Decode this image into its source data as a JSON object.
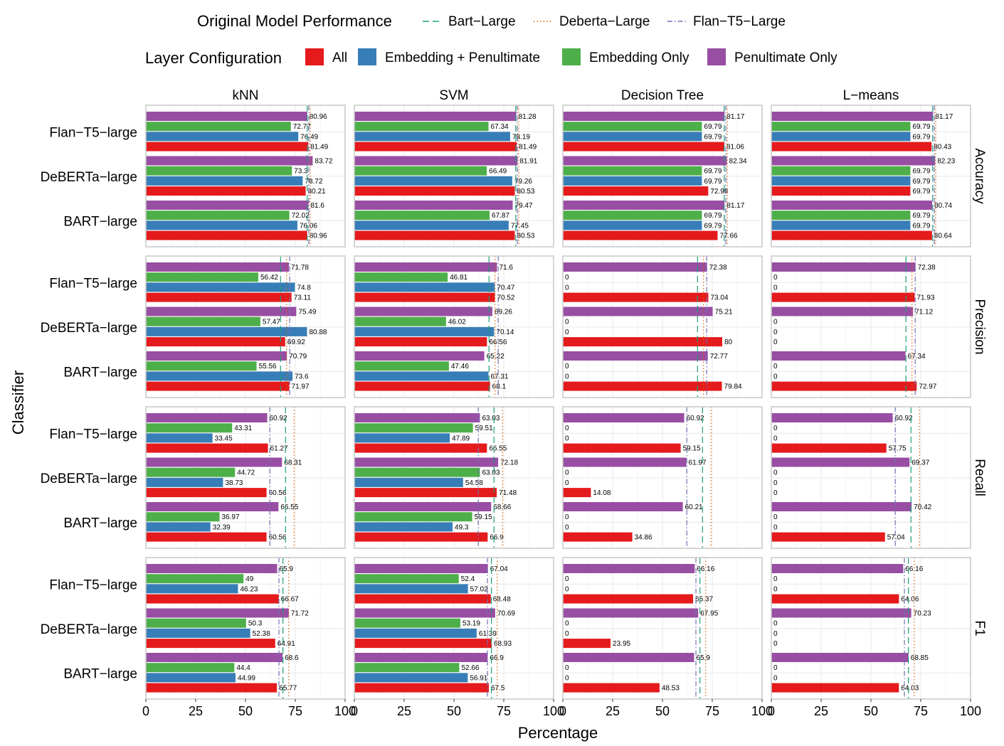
{
  "chart_data": {
    "type": "bar",
    "xlabel": "Percentage",
    "ylabel": "Classifier",
    "xlim": [
      0,
      100
    ],
    "xticks": [
      0,
      25,
      50,
      75,
      100
    ],
    "grid": true,
    "columns": [
      "kNN",
      "SVM",
      "Decision Tree",
      "L−means"
    ],
    "rows": [
      "Accuracy",
      "Precision",
      "Recall",
      "F1"
    ],
    "categories": [
      "Flan−T5−large",
      "DeBERTa−large",
      "BART−large"
    ],
    "legend": {
      "placement": "top",
      "ref_title": "Original Model Performance",
      "ref_items": [
        {
          "name": "Bart−Large",
          "color": "#1b9e77",
          "dash": "9,5"
        },
        {
          "name": "Deberta−Large",
          "color": "#d95f02",
          "dash": "1.5,3"
        },
        {
          "name": "Flan−T5−Large",
          "color": "#7570b3",
          "dash": "7,3,1.5,3"
        }
      ],
      "layer_title": "Layer Configuration",
      "layer_items": [
        {
          "name": "All",
          "color": "#e41a1c"
        },
        {
          "name": "Embedding + Penultimate",
          "color": "#377eb8"
        },
        {
          "name": "Embedding Only",
          "color": "#4daf4a"
        },
        {
          "name": "Penultimate Only",
          "color": "#984ea3"
        }
      ]
    },
    "bar_order_top_to_bottom": [
      "Penultimate Only",
      "Embedding Only",
      "Embedding + Penultimate",
      "All"
    ],
    "reference_lines": {
      "Accuracy": {
        "Bart−Large": 81.0,
        "Deberta−Large": 82.5,
        "Flan−T5−Large": 81.8
      },
      "Precision": {
        "Bart−Large": 67.6,
        "Deberta−Large": 70.6,
        "Flan−T5−Large": 72.2
      },
      "Recall": {
        "Bart−Large": 70.1,
        "Deberta−Large": 74.4,
        "Flan−T5−Large": 62.2
      },
      "F1": {
        "Bart−Large": 68.8,
        "Deberta−Large": 71.7,
        "Flan−T5−Large": 66.8
      }
    },
    "panels": [
      {
        "metric": "Accuracy",
        "classifier": "kNN",
        "values": {
          "Flan−T5−large": {
            "Penultimate Only": 80.96,
            "Embedding Only": 72.77,
            "Embedding + Penultimate": 76.49,
            "All": 81.49
          },
          "DeBERTa−large": {
            "Penultimate Only": 83.72,
            "Embedding Only": 73.3,
            "Embedding + Penultimate": 78.72,
            "All": 80.21
          },
          "BART−large": {
            "Penultimate Only": 81.6,
            "Embedding Only": 72.02,
            "Embedding + Penultimate": 76.06,
            "All": 80.96
          }
        }
      },
      {
        "metric": "Accuracy",
        "classifier": "SVM",
        "values": {
          "Flan−T5−large": {
            "Penultimate Only": 81.28,
            "Embedding Only": 67.34,
            "Embedding + Penultimate": 78.19,
            "All": 81.49
          },
          "DeBERTa−large": {
            "Penultimate Only": 81.91,
            "Embedding Only": 66.49,
            "Embedding + Penultimate": 79.26,
            "All": 80.53
          },
          "BART−large": {
            "Penultimate Only": 79.47,
            "Embedding Only": 67.87,
            "Embedding + Penultimate": 77.45,
            "All": 80.53
          }
        }
      },
      {
        "metric": "Accuracy",
        "classifier": "Decision Tree",
        "values": {
          "Flan−T5−large": {
            "Penultimate Only": 81.17,
            "Embedding Only": 69.79,
            "Embedding + Penultimate": 69.79,
            "All": 81.06
          },
          "DeBERTa−large": {
            "Penultimate Only": 82.34,
            "Embedding Only": 69.79,
            "Embedding + Penultimate": 69.79,
            "All": 72.98
          },
          "BART−large": {
            "Penultimate Only": 81.17,
            "Embedding Only": 69.79,
            "Embedding + Penultimate": 69.79,
            "All": 77.66
          }
        }
      },
      {
        "metric": "Accuracy",
        "classifier": "L−means",
        "values": {
          "Flan−T5−large": {
            "Penultimate Only": 81.17,
            "Embedding Only": 69.79,
            "Embedding + Penultimate": 69.79,
            "All": 80.43
          },
          "DeBERTa−large": {
            "Penultimate Only": 82.23,
            "Embedding Only": 69.79,
            "Embedding + Penultimate": 69.79,
            "All": 69.79
          },
          "BART−large": {
            "Penultimate Only": 80.74,
            "Embedding Only": 69.79,
            "Embedding + Penultimate": 69.79,
            "All": 80.64
          }
        }
      },
      {
        "metric": "Precision",
        "classifier": "kNN",
        "values": {
          "Flan−T5−large": {
            "Penultimate Only": 71.78,
            "Embedding Only": 56.42,
            "Embedding + Penultimate": 74.8,
            "All": 73.11
          },
          "DeBERTa−large": {
            "Penultimate Only": 75.49,
            "Embedding Only": 57.47,
            "Embedding + Penultimate": 80.88,
            "All": 69.92
          },
          "BART−large": {
            "Penultimate Only": 70.79,
            "Embedding Only": 55.56,
            "Embedding + Penultimate": 73.6,
            "All": 71.97
          }
        }
      },
      {
        "metric": "Precision",
        "classifier": "SVM",
        "values": {
          "Flan−T5−large": {
            "Penultimate Only": 71.6,
            "Embedding Only": 46.81,
            "Embedding + Penultimate": 70.47,
            "All": 70.52
          },
          "DeBERTa−large": {
            "Penultimate Only": 69.26,
            "Embedding Only": 46.02,
            "Embedding + Penultimate": 70.14,
            "All": 66.56
          },
          "BART−large": {
            "Penultimate Only": 65.22,
            "Embedding Only": 47.46,
            "Embedding + Penultimate": 67.31,
            "All": 68.1
          }
        }
      },
      {
        "metric": "Precision",
        "classifier": "Decision Tree",
        "values": {
          "Flan−T5−large": {
            "Penultimate Only": 72.38,
            "Embedding Only": 0,
            "Embedding + Penultimate": 0,
            "All": 73.04
          },
          "DeBERTa−large": {
            "Penultimate Only": 75.21,
            "Embedding Only": 0,
            "Embedding + Penultimate": 0,
            "All": 80
          },
          "BART−large": {
            "Penultimate Only": 72.77,
            "Embedding Only": 0,
            "Embedding + Penultimate": 0,
            "All": 79.84
          }
        }
      },
      {
        "metric": "Precision",
        "classifier": "L−means",
        "values": {
          "Flan−T5−large": {
            "Penultimate Only": 72.38,
            "Embedding Only": 0,
            "Embedding + Penultimate": 0,
            "All": 71.93
          },
          "DeBERTa−large": {
            "Penultimate Only": 71.12,
            "Embedding Only": 0,
            "Embedding + Penultimate": 0,
            "All": 0
          },
          "BART−large": {
            "Penultimate Only": 67.34,
            "Embedding Only": 0,
            "Embedding + Penultimate": 0,
            "All": 72.97
          }
        }
      },
      {
        "metric": "Recall",
        "classifier": "kNN",
        "values": {
          "Flan−T5−large": {
            "Penultimate Only": 60.92,
            "Embedding Only": 43.31,
            "Embedding + Penultimate": 33.45,
            "All": 61.27
          },
          "DeBERTa−large": {
            "Penultimate Only": 68.31,
            "Embedding Only": 44.72,
            "Embedding + Penultimate": 38.73,
            "All": 60.56
          },
          "BART−large": {
            "Penultimate Only": 66.55,
            "Embedding Only": 36.97,
            "Embedding + Penultimate": 32.39,
            "All": 60.56
          }
        }
      },
      {
        "metric": "Recall",
        "classifier": "SVM",
        "values": {
          "Flan−T5−large": {
            "Penultimate Only": 63.03,
            "Embedding Only": 59.51,
            "Embedding + Penultimate": 47.89,
            "All": 66.55
          },
          "DeBERTa−large": {
            "Penultimate Only": 72.18,
            "Embedding Only": 63.03,
            "Embedding + Penultimate": 54.58,
            "All": 71.48
          },
          "BART−large": {
            "Penultimate Only": 68.66,
            "Embedding Only": 59.15,
            "Embedding + Penultimate": 49.3,
            "All": 66.9
          }
        }
      },
      {
        "metric": "Recall",
        "classifier": "Decision Tree",
        "values": {
          "Flan−T5−large": {
            "Penultimate Only": 60.92,
            "Embedding Only": 0,
            "Embedding + Penultimate": 0,
            "All": 59.15
          },
          "DeBERTa−large": {
            "Penultimate Only": 61.97,
            "Embedding Only": 0,
            "Embedding + Penultimate": 0,
            "All": 14.08
          },
          "BART−large": {
            "Penultimate Only": 60.21,
            "Embedding Only": 0,
            "Embedding + Penultimate": 0,
            "All": 34.86
          }
        }
      },
      {
        "metric": "Recall",
        "classifier": "L−means",
        "values": {
          "Flan−T5−large": {
            "Penultimate Only": 60.92,
            "Embedding Only": 0,
            "Embedding + Penultimate": 0,
            "All": 57.75
          },
          "DeBERTa−large": {
            "Penultimate Only": 69.37,
            "Embedding Only": 0,
            "Embedding + Penultimate": 0,
            "All": 0
          },
          "BART−large": {
            "Penultimate Only": 70.42,
            "Embedding Only": 0,
            "Embedding + Penultimate": 0,
            "All": 57.04
          }
        }
      },
      {
        "metric": "F1",
        "classifier": "kNN",
        "values": {
          "Flan−T5−large": {
            "Penultimate Only": 65.9,
            "Embedding Only": 49,
            "Embedding + Penultimate": 46.23,
            "All": 66.67
          },
          "DeBERTa−large": {
            "Penultimate Only": 71.72,
            "Embedding Only": 50.3,
            "Embedding + Penultimate": 52.38,
            "All": 64.91
          },
          "BART−large": {
            "Penultimate Only": 68.6,
            "Embedding Only": 44.4,
            "Embedding + Penultimate": 44.99,
            "All": 65.77
          }
        }
      },
      {
        "metric": "F1",
        "classifier": "SVM",
        "values": {
          "Flan−T5−large": {
            "Penultimate Only": 67.04,
            "Embedding Only": 52.4,
            "Embedding + Penultimate": 57.02,
            "All": 68.48
          },
          "DeBERTa−large": {
            "Penultimate Only": 70.69,
            "Embedding Only": 53.19,
            "Embedding + Penultimate": 61.39,
            "All": 68.93
          },
          "BART−large": {
            "Penultimate Only": 66.9,
            "Embedding Only": 52.66,
            "Embedding + Penultimate": 56.91,
            "All": 67.5
          }
        }
      },
      {
        "metric": "F1",
        "classifier": "Decision Tree",
        "values": {
          "Flan−T5−large": {
            "Penultimate Only": 66.16,
            "Embedding Only": 0,
            "Embedding + Penultimate": 0,
            "All": 65.37
          },
          "DeBERTa−large": {
            "Penultimate Only": 67.95,
            "Embedding Only": 0,
            "Embedding + Penultimate": 0,
            "All": 23.95
          },
          "BART−large": {
            "Penultimate Only": 65.9,
            "Embedding Only": 0,
            "Embedding + Penultimate": 0,
            "All": 48.53
          }
        }
      },
      {
        "metric": "F1",
        "classifier": "L−means",
        "values": {
          "Flan−T5−large": {
            "Penultimate Only": 66.16,
            "Embedding Only": 0,
            "Embedding + Penultimate": 0,
            "All": 64.06
          },
          "DeBERTa−large": {
            "Penultimate Only": 70.23,
            "Embedding Only": 0,
            "Embedding + Penultimate": 0,
            "All": 0
          },
          "BART−large": {
            "Penultimate Only": 68.85,
            "Embedding Only": 0,
            "Embedding + Penultimate": 0,
            "All": 64.03
          }
        }
      }
    ]
  }
}
